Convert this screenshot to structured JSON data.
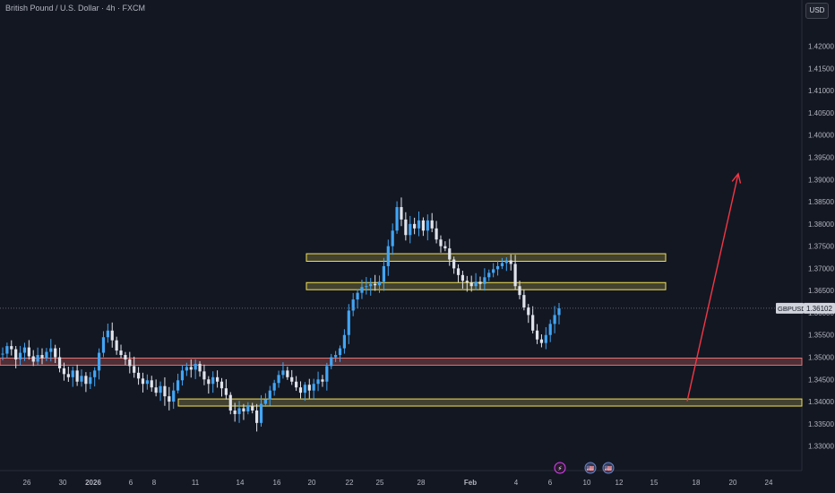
{
  "header": {
    "title": "British Pound / U.S. Dollar · 4h · FXCM",
    "currency": "USD"
  },
  "price_tag": {
    "symbol": "GBPUSD",
    "price": "1.36102",
    "value": 1.36102
  },
  "colors": {
    "background": "#131722",
    "up_candle": "#42a5f5",
    "down_candle": "#e0e3eb",
    "zone_yellow": "#f2e15b",
    "zone_red": "#e57373",
    "arrow": "#f23645",
    "axis_text": "#b2b5be"
  },
  "chart_data": {
    "type": "candlestick",
    "y_axis": {
      "min": 1.3275,
      "max": 1.428,
      "ticks": [
        "1.42000",
        "1.41500",
        "1.41000",
        "1.40500",
        "1.40000",
        "1.39500",
        "1.39000",
        "1.38500",
        "1.38000",
        "1.37500",
        "1.37000",
        "1.36500",
        "1.36000",
        "1.35500",
        "1.35000",
        "1.34500",
        "1.34000",
        "1.33500",
        "1.33000"
      ]
    },
    "x_axis": {
      "labels": [
        "26",
        "30",
        "2026",
        "6",
        "8",
        "11",
        "14",
        "16",
        "20",
        "22",
        "25",
        "28",
        "Feb",
        "4",
        "6",
        "10",
        "12",
        "15",
        "18",
        "20",
        "24"
      ]
    },
    "zones": [
      {
        "name": "resistance-upper",
        "low": 1.3716,
        "high": 1.3733,
        "color": "yellow"
      },
      {
        "name": "resistance-lower",
        "low": 1.3652,
        "high": 1.3668,
        "color": "yellow"
      },
      {
        "name": "support-red",
        "low": 1.3482,
        "high": 1.3498,
        "color": "red"
      },
      {
        "name": "support-yellow",
        "low": 1.339,
        "high": 1.3406,
        "color": "yellow"
      }
    ],
    "arrow": {
      "from": 1.3401,
      "to": 1.3913
    },
    "event_icons": [
      "⚡",
      "🇺🇸",
      "🇺🇸"
    ],
    "price_path": [
      1.3508,
      1.3525,
      1.3518,
      1.3495,
      1.351,
      1.3522,
      1.3502,
      1.349,
      1.3505,
      1.3498,
      1.3512,
      1.352,
      1.35,
      1.3475,
      1.3462,
      1.3455,
      1.347,
      1.3445,
      1.3458,
      1.344,
      1.3455,
      1.347,
      1.351,
      1.3545,
      1.356,
      1.3538,
      1.3515,
      1.3505,
      1.3495,
      1.348,
      1.3465,
      1.3452,
      1.344,
      1.3448,
      1.3432,
      1.342,
      1.3435,
      1.3412,
      1.34,
      1.3425,
      1.3448,
      1.347,
      1.3478,
      1.3472,
      1.3485,
      1.3468,
      1.345,
      1.344,
      1.3455,
      1.3445,
      1.343,
      1.3415,
      1.338,
      1.3372,
      1.3385,
      1.3378,
      1.339,
      1.338,
      1.3352,
      1.3395,
      1.3405,
      1.3425,
      1.3442,
      1.346,
      1.347,
      1.3455,
      1.3445,
      1.3432,
      1.342,
      1.3438,
      1.3425,
      1.344,
      1.345,
      1.3445,
      1.348,
      1.35,
      1.3505,
      1.352,
      1.355,
      1.3605,
      1.363,
      1.3645,
      1.3658,
      1.366,
      1.3665,
      1.3662,
      1.367,
      1.3705,
      1.375,
      1.3785,
      1.3838,
      1.381,
      1.3775,
      1.38,
      1.379,
      1.3808,
      1.3785,
      1.3808,
      1.379,
      1.3765,
      1.375,
      1.3745,
      1.372,
      1.37,
      1.3685,
      1.3672,
      1.3668,
      1.366,
      1.367,
      1.3665,
      1.368,
      1.369,
      1.3698,
      1.3705,
      1.3712,
      1.3718,
      1.371,
      1.366,
      1.364,
      1.3612,
      1.3595,
      1.356,
      1.354,
      1.3532,
      1.355,
      1.3575,
      1.3595,
      1.361
    ]
  }
}
